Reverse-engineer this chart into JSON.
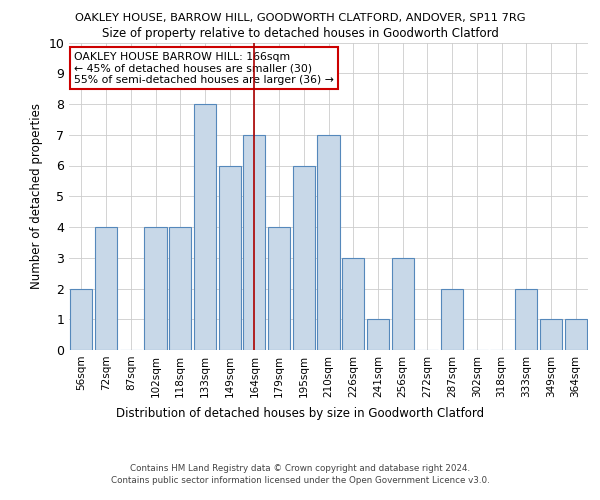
{
  "title1": "OAKLEY HOUSE, BARROW HILL, GOODWORTH CLATFORD, ANDOVER, SP11 7RG",
  "title2": "Size of property relative to detached houses in Goodworth Clatford",
  "xlabel": "Distribution of detached houses by size in Goodworth Clatford",
  "ylabel": "Number of detached properties",
  "footer1": "Contains HM Land Registry data © Crown copyright and database right 2024.",
  "footer2": "Contains public sector information licensed under the Open Government Licence v3.0.",
  "categories": [
    "56sqm",
    "72sqm",
    "87sqm",
    "102sqm",
    "118sqm",
    "133sqm",
    "149sqm",
    "164sqm",
    "179sqm",
    "195sqm",
    "210sqm",
    "226sqm",
    "241sqm",
    "256sqm",
    "272sqm",
    "287sqm",
    "302sqm",
    "318sqm",
    "333sqm",
    "349sqm",
    "364sqm"
  ],
  "values": [
    2,
    4,
    0,
    4,
    4,
    8,
    6,
    7,
    4,
    6,
    7,
    3,
    1,
    3,
    0,
    2,
    0,
    0,
    2,
    1,
    1
  ],
  "bar_color": "#c8d8e8",
  "bar_edge_color": "#5588bb",
  "highlight_index": 7,
  "highlight_line_color": "#aa0000",
  "ylim": [
    0,
    10
  ],
  "yticks": [
    0,
    1,
    2,
    3,
    4,
    5,
    6,
    7,
    8,
    9,
    10
  ],
  "annotation_text": "OAKLEY HOUSE BARROW HILL: 166sqm\n← 45% of detached houses are smaller (30)\n55% of semi-detached houses are larger (36) →",
  "annotation_box_color": "#ffffff",
  "annotation_box_edge_color": "#cc0000",
  "grid_color": "#cccccc",
  "background_color": "#ffffff"
}
